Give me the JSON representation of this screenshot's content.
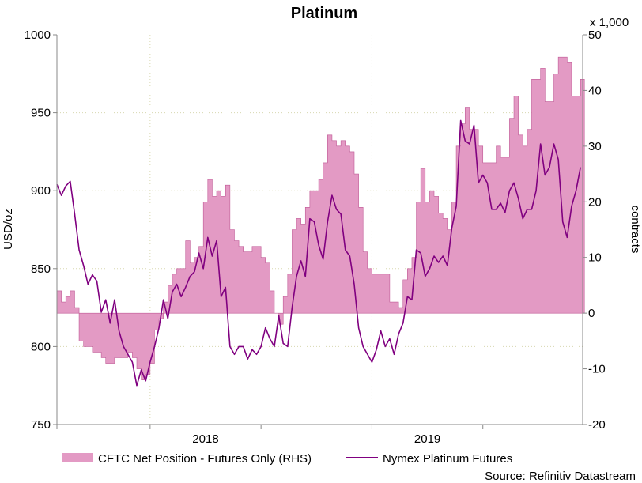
{
  "chart_data": {
    "type": "area",
    "title": "Platinum",
    "ylabel": "USD/oz",
    "y2label": "contracts",
    "y2_multiplier_label": "x 1,000",
    "ylim": [
      750,
      1000
    ],
    "yticks": [
      "1000",
      "950",
      "900",
      "850",
      "800",
      "750"
    ],
    "y2lim": [
      -20,
      50
    ],
    "y2ticks": [
      "50",
      "40",
      "30",
      "20",
      "10",
      "0",
      "-10",
      "-20"
    ],
    "xticks": [
      "2018",
      "2019"
    ],
    "x_range": [
      2017.58,
      2019.95
    ],
    "grid": true,
    "legend": "bottom",
    "source": "Source: Refinitiv Datastream",
    "colors": {
      "area_fill": "#E39AC4",
      "area_edge": "#C05A96",
      "line": "#800080",
      "grid": "#D8D8B0"
    },
    "series": [
      {
        "name": "CFTC Net Position - Futures Only (RHS)",
        "axis": "right",
        "style": "area",
        "x": [
          2017.58,
          2017.6,
          2017.62,
          2017.64,
          2017.66,
          2017.68,
          2017.7,
          2017.72,
          2017.74,
          2017.76,
          2017.78,
          2017.8,
          2017.82,
          2017.84,
          2017.86,
          2017.88,
          2017.9,
          2017.92,
          2017.94,
          2017.96,
          2017.98,
          2018.0,
          2018.02,
          2018.04,
          2018.06,
          2018.08,
          2018.1,
          2018.12,
          2018.14,
          2018.16,
          2018.18,
          2018.2,
          2018.22,
          2018.24,
          2018.26,
          2018.28,
          2018.3,
          2018.32,
          2018.34,
          2018.36,
          2018.38,
          2018.4,
          2018.42,
          2018.44,
          2018.46,
          2018.48,
          2018.5,
          2018.52,
          2018.54,
          2018.56,
          2018.58,
          2018.6,
          2018.62,
          2018.64,
          2018.66,
          2018.68,
          2018.7,
          2018.72,
          2018.74,
          2018.76,
          2018.78,
          2018.8,
          2018.82,
          2018.84,
          2018.86,
          2018.88,
          2018.9,
          2018.92,
          2018.94,
          2018.96,
          2018.98,
          2019.0,
          2019.02,
          2019.04,
          2019.06,
          2019.08,
          2019.1,
          2019.12,
          2019.14,
          2019.16,
          2019.18,
          2019.2,
          2019.22,
          2019.24,
          2019.26,
          2019.28,
          2019.3,
          2019.32,
          2019.34,
          2019.36,
          2019.38,
          2019.4,
          2019.42,
          2019.44,
          2019.46,
          2019.48,
          2019.5,
          2019.52,
          2019.54,
          2019.56,
          2019.58,
          2019.6,
          2019.62,
          2019.64,
          2019.66,
          2019.68,
          2019.7,
          2019.72,
          2019.74,
          2019.76,
          2019.78,
          2019.8,
          2019.82,
          2019.84,
          2019.86,
          2019.88,
          2019.9,
          2019.92,
          2019.94
        ],
        "values": [
          4,
          2,
          3,
          4,
          1,
          -5,
          -6,
          -6,
          -7,
          -7,
          -8,
          -9,
          -9,
          -8,
          -8,
          -8,
          -7,
          -8,
          -10,
          -12,
          -11,
          -9,
          -3,
          -1,
          2,
          5,
          7,
          8,
          8,
          13,
          9,
          10,
          12,
          20,
          24,
          21,
          22,
          21,
          23,
          15,
          13,
          12,
          11,
          11,
          12,
          12,
          10,
          9,
          4,
          0,
          -2,
          3,
          7,
          15,
          17,
          16,
          19,
          22,
          22,
          24,
          27,
          32,
          31,
          30,
          31,
          30,
          29,
          25,
          19,
          11,
          8,
          7,
          7,
          7,
          7,
          2,
          2,
          1,
          6,
          8,
          10,
          20,
          26,
          20,
          22,
          21,
          18,
          17,
          15,
          20,
          30,
          34,
          37,
          33,
          33,
          30,
          27,
          27,
          27,
          30,
          28,
          28,
          35,
          39,
          32,
          30,
          33,
          42,
          42,
          44,
          38,
          38,
          43,
          46,
          46,
          45,
          39,
          39,
          42
        ]
      },
      {
        "name": "Nymex Platinum Futures",
        "axis": "left",
        "style": "line",
        "x": [
          2017.58,
          2017.6,
          2017.62,
          2017.64,
          2017.66,
          2017.68,
          2017.7,
          2017.72,
          2017.74,
          2017.76,
          2017.78,
          2017.8,
          2017.82,
          2017.84,
          2017.86,
          2017.88,
          2017.9,
          2017.92,
          2017.94,
          2017.96,
          2017.98,
          2018.0,
          2018.02,
          2018.04,
          2018.06,
          2018.08,
          2018.1,
          2018.12,
          2018.14,
          2018.16,
          2018.18,
          2018.2,
          2018.22,
          2018.24,
          2018.26,
          2018.28,
          2018.3,
          2018.32,
          2018.34,
          2018.36,
          2018.38,
          2018.4,
          2018.42,
          2018.44,
          2018.46,
          2018.48,
          2018.5,
          2018.52,
          2018.54,
          2018.56,
          2018.58,
          2018.6,
          2018.62,
          2018.64,
          2018.66,
          2018.68,
          2018.7,
          2018.72,
          2018.74,
          2018.76,
          2018.78,
          2018.8,
          2018.82,
          2018.84,
          2018.86,
          2018.88,
          2018.9,
          2018.92,
          2018.94,
          2018.96,
          2018.98,
          2019.0,
          2019.02,
          2019.04,
          2019.06,
          2019.08,
          2019.1,
          2019.12,
          2019.14,
          2019.16,
          2019.18,
          2019.2,
          2019.22,
          2019.24,
          2019.26,
          2019.28,
          2019.3,
          2019.32,
          2019.34,
          2019.36,
          2019.38,
          2019.4,
          2019.42,
          2019.44,
          2019.46,
          2019.48,
          2019.5,
          2019.52,
          2019.54,
          2019.56,
          2019.58,
          2019.6,
          2019.62,
          2019.64,
          2019.66,
          2019.68,
          2019.7,
          2019.72,
          2019.74,
          2019.76,
          2019.78,
          2019.8,
          2019.82,
          2019.84,
          2019.86,
          2019.88,
          2019.9,
          2019.92,
          2019.94
        ],
        "values": [
          904,
          897,
          903,
          906,
          885,
          862,
          852,
          840,
          846,
          842,
          822,
          830,
          815,
          830,
          810,
          800,
          795,
          790,
          775,
          785,
          778,
          790,
          800,
          812,
          830,
          818,
          835,
          840,
          832,
          838,
          845,
          848,
          860,
          850,
          870,
          858,
          868,
          832,
          838,
          800,
          795,
          800,
          800,
          792,
          798,
          795,
          800,
          812,
          805,
          800,
          820,
          802,
          800,
          825,
          845,
          855,
          845,
          882,
          880,
          865,
          856,
          880,
          897,
          888,
          885,
          862,
          858,
          840,
          812,
          800,
          795,
          790,
          798,
          810,
          800,
          805,
          795,
          808,
          815,
          832,
          830,
          862,
          860,
          845,
          850,
          858,
          854,
          858,
          852,
          876,
          890,
          945,
          932,
          930,
          942,
          905,
          910,
          905,
          888,
          888,
          892,
          886,
          900,
          905,
          895,
          882,
          888,
          888,
          900,
          930,
          910,
          915,
          930,
          920,
          880,
          870,
          890,
          900,
          915
        ]
      }
    ]
  }
}
